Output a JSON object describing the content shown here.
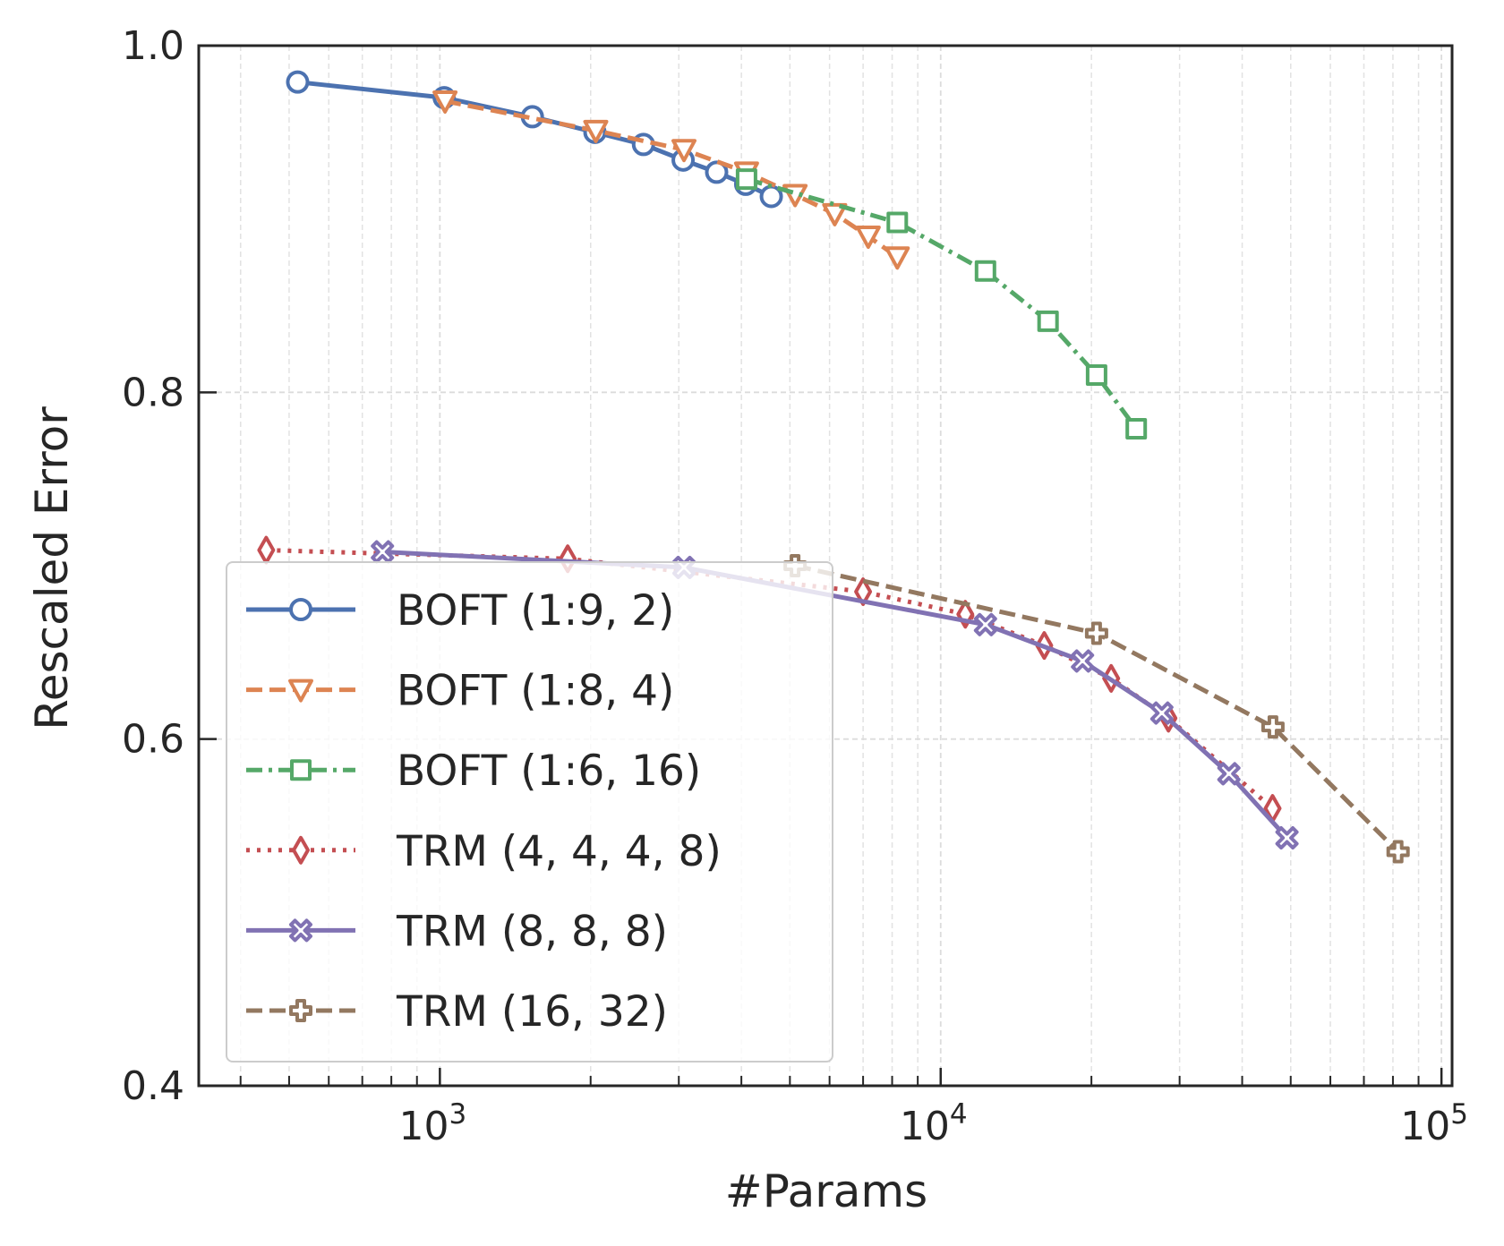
{
  "chart_data": {
    "type": "line",
    "xlabel": "#Params",
    "ylabel": "Rescaled Error",
    "x_scale": "log",
    "xlim": [
      330,
      105000
    ],
    "ylim": [
      0.4,
      1.0
    ],
    "x_ticks": [
      {
        "value": 1000,
        "base": "10",
        "exp": "3"
      },
      {
        "value": 10000,
        "base": "10",
        "exp": "4"
      },
      {
        "value": 100000,
        "base": "10",
        "exp": "5"
      }
    ],
    "y_ticks": [
      {
        "value": 0.4,
        "label": "0.4"
      },
      {
        "value": 0.6,
        "label": "0.6"
      },
      {
        "value": 0.8,
        "label": "0.8"
      },
      {
        "value": 1.0,
        "label": "1.0"
      }
    ],
    "grid": true,
    "legend_position": "lower-left",
    "series": [
      {
        "name": "BOFT (1:9, 2)",
        "color": "#4c72b0",
        "marker": "circle",
        "line_style": "solid",
        "x": [
          520,
          1020,
          1530,
          2040,
          2550,
          3060,
          3570,
          4080,
          4590
        ],
        "y": [
          0.979,
          0.97,
          0.959,
          0.95,
          0.943,
          0.934,
          0.927,
          0.92,
          0.913
        ]
      },
      {
        "name": "BOFT (1:8, 4)",
        "color": "#dd8452",
        "marker": "triangle-down",
        "line_style": "dashed",
        "x": [
          1024,
          2048,
          3072,
          4096,
          5120,
          6144,
          7168,
          8192
        ],
        "y": [
          0.968,
          0.951,
          0.94,
          0.927,
          0.914,
          0.903,
          0.89,
          0.878
        ]
      },
      {
        "name": "BOFT (1:6, 16)",
        "color": "#55a868",
        "marker": "square",
        "line_style": "dashdot",
        "x": [
          4096,
          8192,
          12288,
          16384,
          20480,
          24576
        ],
        "y": [
          0.923,
          0.898,
          0.87,
          0.841,
          0.81,
          0.779
        ]
      },
      {
        "name": "TRM (4, 4, 4, 8)",
        "color": "#c44e52",
        "marker": "thin-diamond",
        "line_style": "dotted",
        "x": [
          450,
          1800,
          7000,
          11200,
          16100,
          21900,
          28500,
          46000
        ],
        "y": [
          0.709,
          0.704,
          0.685,
          0.672,
          0.654,
          0.635,
          0.612,
          0.56
        ]
      },
      {
        "name": "TRM (8, 8, 8)",
        "color": "#8172b3",
        "marker": "x-filled",
        "line_style": "solid",
        "x": [
          768,
          3072,
          12288,
          19200,
          27648,
          37632,
          49152
        ],
        "y": [
          0.708,
          0.699,
          0.666,
          0.645,
          0.615,
          0.58,
          0.543
        ]
      },
      {
        "name": "TRM (16, 32)",
        "color": "#937860",
        "marker": "plus-filled",
        "line_style": "dashed",
        "x": [
          5120,
          20480,
          46080,
          81920
        ],
        "y": [
          0.7,
          0.661,
          0.607,
          0.535
        ]
      }
    ]
  }
}
